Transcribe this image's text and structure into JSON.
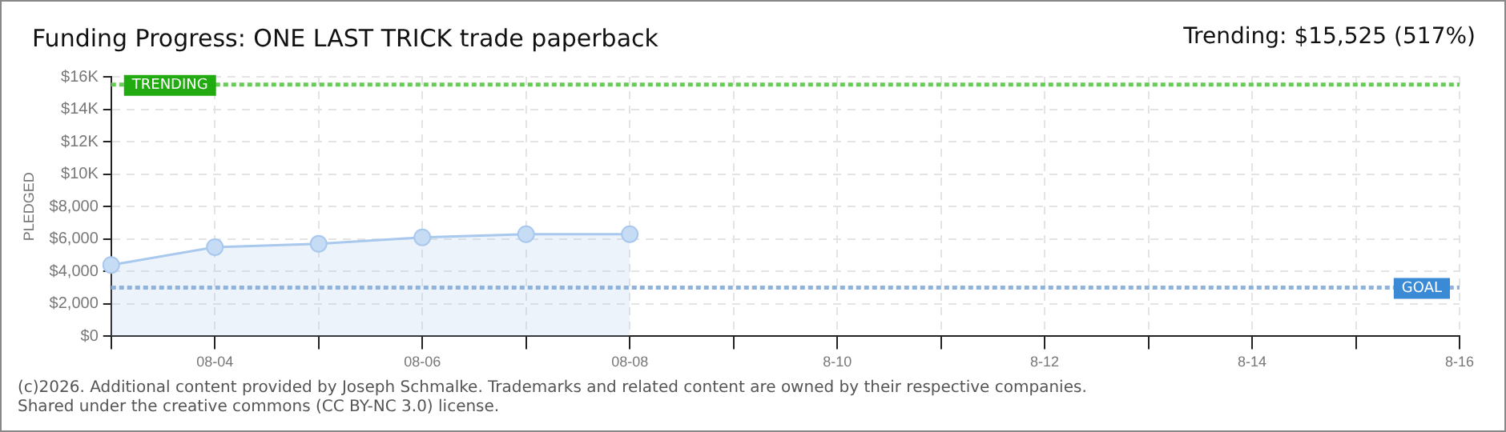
{
  "chart_data": {
    "type": "area",
    "title": "Funding Progress: ONE LAST TRICK trade paperback",
    "ylabel": "PLEDGED",
    "categories": [
      null,
      "08-04",
      null,
      "08-06",
      null,
      "08-08",
      null,
      "8-10",
      null,
      "8-12",
      null,
      "8-14",
      null,
      "8-16"
    ],
    "series": [
      {
        "color": "#a9c8ee",
        "values": [
          4400,
          5500,
          5700,
          6100,
          6300,
          6300,
          null,
          null,
          null,
          null,
          null,
          null,
          null,
          null
        ]
      }
    ],
    "ylim": [
      0,
      16000
    ],
    "yticks": [
      {
        "value": 0,
        "label": "$0"
      },
      {
        "value": 2000,
        "label": "$2,000"
      },
      {
        "value": 4000,
        "label": "$4,000"
      },
      {
        "value": 6000,
        "label": "$6,000"
      },
      {
        "value": 8000,
        "label": "$8,000"
      },
      {
        "value": 10000,
        "label": "$10K"
      },
      {
        "value": 12000,
        "label": "$12K"
      },
      {
        "value": 14000,
        "label": "$14K"
      },
      {
        "value": 16000,
        "label": "$16K"
      }
    ],
    "ref_lines": [
      {
        "axis": "y",
        "value": 15525,
        "label": "TRENDING",
        "color": "#66cc55",
        "line_style": "dotted"
      },
      {
        "axis": "y",
        "value": 3000,
        "label": "GOAL",
        "color": "#8fb3dd",
        "line_style": "dotted"
      }
    ],
    "annotations": [
      "Trending: $15,525 (517%)",
      "(c)2026. Additional content provided by Joseph Schmalke. Trademarks and related content are owned by their respective companies.",
      "Shared under the creative commons (CC BY-NC 3.0) license."
    ],
    "grid": true,
    "marker": "circle",
    "line_style": "solid"
  }
}
